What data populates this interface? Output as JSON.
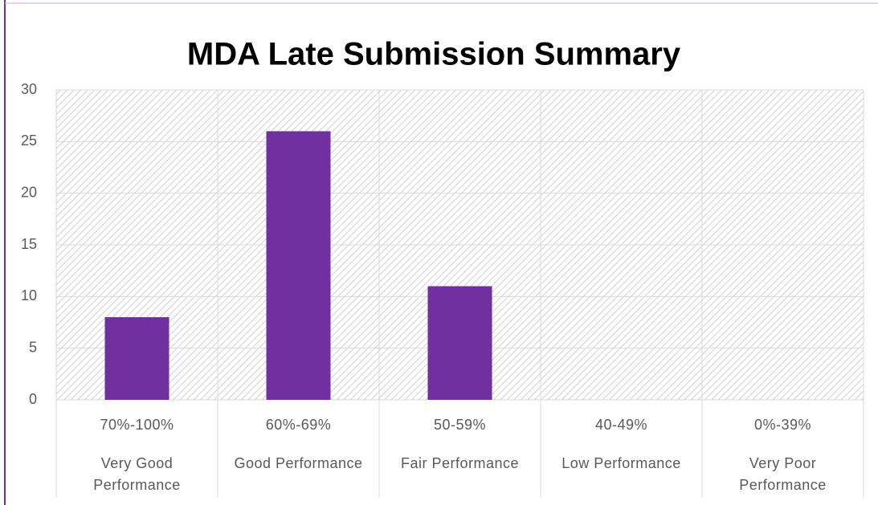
{
  "chart_data": {
    "type": "bar",
    "title": "MDA Late Submission Summary",
    "categories": [
      "70%-100%",
      "60%-69%",
      "50-59%",
      "40-49%",
      "0%-39%"
    ],
    "category_labels": [
      "Very Good Performance",
      "Good Performance",
      "Fair Performance",
      "Low Performance",
      "Very Poor Performance"
    ],
    "values": [
      8,
      26,
      11,
      0,
      0
    ],
    "color": "#7030a0",
    "ylim": [
      0,
      30
    ],
    "yticks": [
      0,
      5,
      10,
      15,
      20,
      25,
      30
    ],
    "grid": true
  }
}
